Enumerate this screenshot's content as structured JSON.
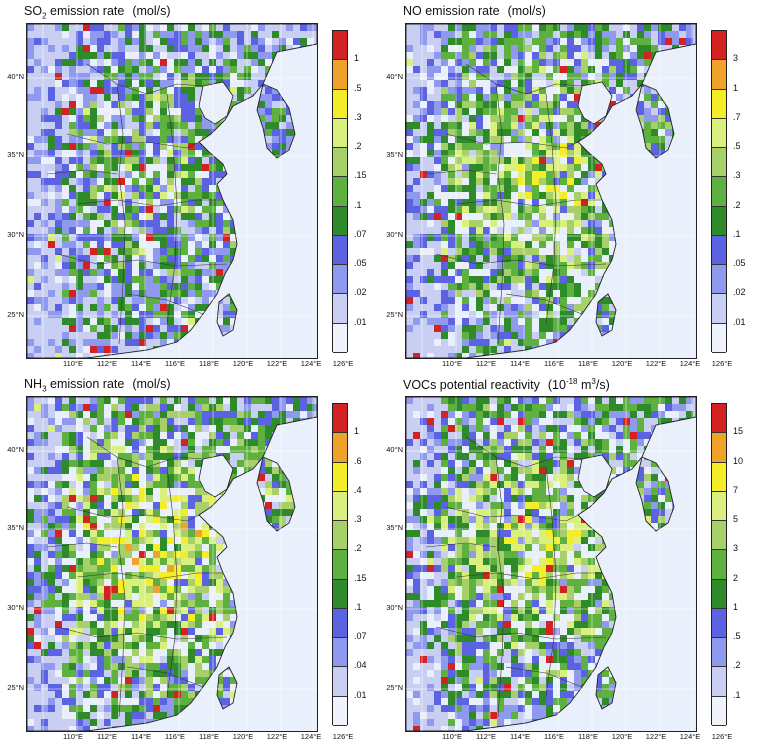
{
  "panels": [
    {
      "id": "so2",
      "title_main": "SO",
      "title_sub": "2",
      "title_rest": " emission rate",
      "title_sup": "",
      "units": "(mol/s)",
      "units_pre": "(mol/s)",
      "units_sup": "",
      "units_post": "",
      "colorbar_labels": [
        "1",
        ".5",
        ".3",
        ".2",
        ".15",
        ".1",
        ".07",
        ".05",
        ".02",
        ".01"
      ],
      "intensity": 0.55
    },
    {
      "id": "no",
      "title_main": "NO emission rate",
      "title_sub": "",
      "title_rest": "",
      "title_sup": "",
      "units_pre": "(mol/s)",
      "units_sup": "",
      "units_post": "",
      "colorbar_labels": [
        "3",
        "1",
        ".7",
        ".5",
        ".3",
        ".2",
        ".1",
        ".05",
        ".02",
        ".01"
      ],
      "intensity": 0.75
    },
    {
      "id": "nh3",
      "title_main": "NH",
      "title_sub": "3",
      "title_rest": " emission rate",
      "title_sup": "",
      "units_pre": "(mol/s)",
      "units_sup": "",
      "units_post": "",
      "colorbar_labels": [
        "1",
        ".6",
        ".4",
        ".3",
        ".2",
        ".15",
        ".1",
        ".07",
        ".04",
        ".01"
      ],
      "intensity": 0.9
    },
    {
      "id": "vocs",
      "title_main": "VOCs potential reactivity",
      "title_sub": "",
      "title_rest": "",
      "title_sup": "",
      "units_pre": "(10",
      "units_sup": "-18",
      "units_post": " m",
      "units_sup2": "3",
      "units_post2": "/s)",
      "colorbar_labels": [
        "15",
        "10",
        "7",
        "5",
        "3",
        "2",
        "1",
        ".5",
        ".2",
        ".1"
      ],
      "intensity": 0.8
    }
  ],
  "lat_ticks": [
    "40°N",
    "35°N",
    "30°N",
    "25°N"
  ],
  "lon_ticks": [
    "110°E",
    "112°E",
    "114°E",
    "116°E",
    "118°E",
    "120°E",
    "122°E",
    "124°E",
    "126°E"
  ],
  "colors": {
    "scale": [
      "#f0f3fb",
      "#c9cff2",
      "#8f99ee",
      "#5b63e2",
      "#2f8a2a",
      "#5fb13f",
      "#a7cf6a",
      "#d9f07f",
      "#f4ee2a",
      "#f0a22a",
      "#d32222"
    ],
    "land": "#e9f0fb",
    "sea": "#e9f0fb"
  }
}
